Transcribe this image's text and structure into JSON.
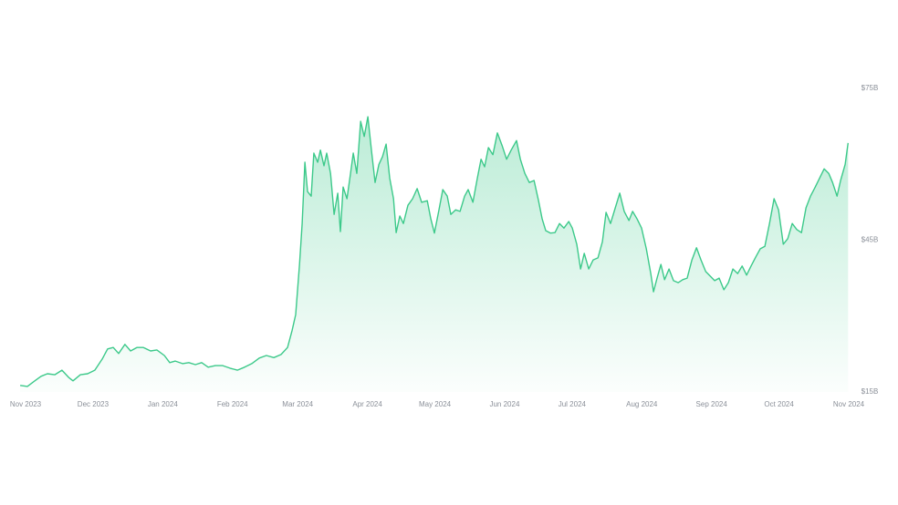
{
  "chart_data": {
    "type": "area-line",
    "color": "#3cc98a",
    "x": [
      -2.4,
      0.8,
      4.1,
      6.9,
      9.7,
      13.0,
      16.2,
      19.1,
      21.1,
      24.4,
      27.6,
      30.8,
      34.1,
      36.5,
      39.0,
      41.4,
      44.2,
      46.7,
      49.5,
      52.4,
      55.6,
      58.4,
      61.7,
      64.1,
      66.6,
      69.8,
      72.6,
      75.5,
      78.3,
      81.2,
      84.4,
      87.7,
      90.9,
      94.2,
      97.4,
      100.6,
      103.9,
      107.1,
      110.4,
      113.6,
      116.5,
      118.5,
      120.1,
      121.8,
      123.0,
      124.2,
      125.4,
      127.0,
      128.2,
      129.9,
      131.1,
      132.7,
      133.9,
      135.6,
      137.2,
      138.8,
      140.0,
      141.2,
      142.9,
      144.5,
      145.7,
      147.3,
      149.0,
      150.6,
      152.2,
      153.8,
      155.4,
      157.1,
      158.7,
      160.3,
      161.9,
      163.6,
      164.8,
      166.4,
      168.0,
      170.0,
      172.1,
      174.1,
      176.1,
      178.6,
      180.2,
      181.8,
      183.8,
      185.5,
      187.5,
      189.1,
      191.2,
      193.2,
      195.2,
      196.8,
      198.9,
      200.9,
      202.5,
      204.1,
      205.8,
      207.8,
      209.8,
      211.9,
      213.9,
      215.9,
      218.3,
      220.0,
      222.0,
      224.0,
      226.1,
      228.1,
      229.7,
      231.3,
      233.4,
      235.4,
      237.4,
      239.4,
      241.5,
      243.1,
      245.1,
      246.8,
      248.4,
      250.4,
      252.4,
      254.5,
      256.5,
      258.1,
      260.1,
      262.2,
      264.2,
      266.2,
      268.3,
      269.9,
      271.9,
      273.9,
      276.0,
      278.0,
      279.2,
      280.8,
      282.5,
      284.1,
      286.1,
      288.1,
      290.2,
      292.2,
      294.2,
      296.3,
      298.3,
      300.3,
      302.4,
      304.4,
      306.4,
      308.4,
      310.5,
      312.5,
      314.5,
      316.6,
      318.6,
      320.6,
      322.6,
      324.7,
      326.7,
      328.7,
      330.8,
      332.8,
      334.8,
      336.9,
      338.9,
      340.9,
      342.9,
      345.0,
      347.0,
      349.0,
      351.1,
      353.1,
      355.1,
      357.1,
      358.8,
      360.8,
      362.4,
      364.4,
      365.7
    ],
    "values": [
      16.3,
      16.1,
      17.2,
      18.1,
      18.6,
      18.4,
      19.3,
      17.9,
      17.2,
      18.4,
      18.6,
      19.3,
      21.5,
      23.5,
      23.8,
      22.6,
      24.4,
      23.1,
      23.8,
      23.8,
      23.1,
      23.3,
      22.2,
      20.8,
      21.1,
      20.6,
      20.8,
      20.4,
      20.8,
      19.9,
      20.2,
      20.2,
      19.7,
      19.3,
      19.9,
      20.6,
      21.7,
      22.2,
      21.8,
      22.4,
      23.8,
      27.1,
      30.3,
      40.2,
      48.3,
      60.4,
      54.6,
      53.7,
      62.2,
      60.4,
      62.8,
      59.7,
      62.2,
      58.2,
      50.1,
      54.3,
      46.7,
      55.5,
      53.2,
      58.2,
      62.2,
      58.2,
      68.5,
      65.5,
      69.4,
      62.8,
      56.4,
      60.0,
      61.5,
      64.0,
      57.3,
      53.2,
      46.5,
      49.8,
      48.3,
      51.9,
      53.2,
      55.2,
      52.5,
      52.8,
      49.2,
      46.4,
      51.0,
      55.0,
      53.7,
      50.1,
      51.0,
      50.7,
      53.7,
      55.0,
      52.5,
      57.3,
      61.0,
      59.5,
      63.3,
      61.9,
      66.2,
      63.7,
      61.0,
      62.8,
      64.7,
      61.0,
      58.2,
      56.4,
      56.8,
      52.8,
      49.2,
      46.9,
      46.4,
      46.5,
      48.3,
      47.4,
      48.7,
      47.4,
      44.2,
      39.3,
      42.4,
      39.3,
      41.1,
      41.5,
      44.7,
      50.5,
      48.3,
      51.4,
      54.3,
      50.7,
      48.9,
      50.7,
      49.2,
      47.4,
      43.3,
      38.4,
      34.8,
      37.5,
      40.2,
      37.2,
      39.3,
      37.0,
      36.6,
      37.2,
      37.5,
      41.1,
      43.5,
      41.1,
      38.8,
      37.9,
      37.0,
      37.5,
      35.2,
      36.6,
      39.3,
      38.4,
      39.9,
      38.1,
      39.9,
      41.7,
      43.3,
      43.8,
      48.3,
      53.2,
      51.0,
      44.2,
      45.3,
      48.3,
      47.1,
      46.5,
      51.4,
      53.7,
      55.5,
      57.3,
      59.1,
      58.2,
      56.4,
      53.7,
      56.8,
      60.0,
      64.2
    ],
    "xlim": [
      -3,
      366
    ],
    "xticks": [
      {
        "value": 0,
        "label": "Nov 2023"
      },
      {
        "value": 30,
        "label": "Dec 2023"
      },
      {
        "value": 61,
        "label": "Jan 2024"
      },
      {
        "value": 92,
        "label": "Feb 2024"
      },
      {
        "value": 121,
        "label": "Mar 2024"
      },
      {
        "value": 152,
        "label": "Apr 2024"
      },
      {
        "value": 182,
        "label": "May 2024"
      },
      {
        "value": 213,
        "label": "Jun 2024"
      },
      {
        "value": 243,
        "label": "Jul 2024"
      },
      {
        "value": 274,
        "label": "Aug 2024"
      },
      {
        "value": 305,
        "label": "Sep 2024"
      },
      {
        "value": 335,
        "label": "Oct 2024"
      },
      {
        "value": 366,
        "label": "Nov 2024"
      }
    ],
    "ylim": [
      15,
      75
    ],
    "yticks": [
      {
        "value": 15,
        "label": "$15B"
      },
      {
        "value": 45,
        "label": "$45B"
      },
      {
        "value": 75,
        "label": "$75B"
      }
    ],
    "grid": false
  }
}
